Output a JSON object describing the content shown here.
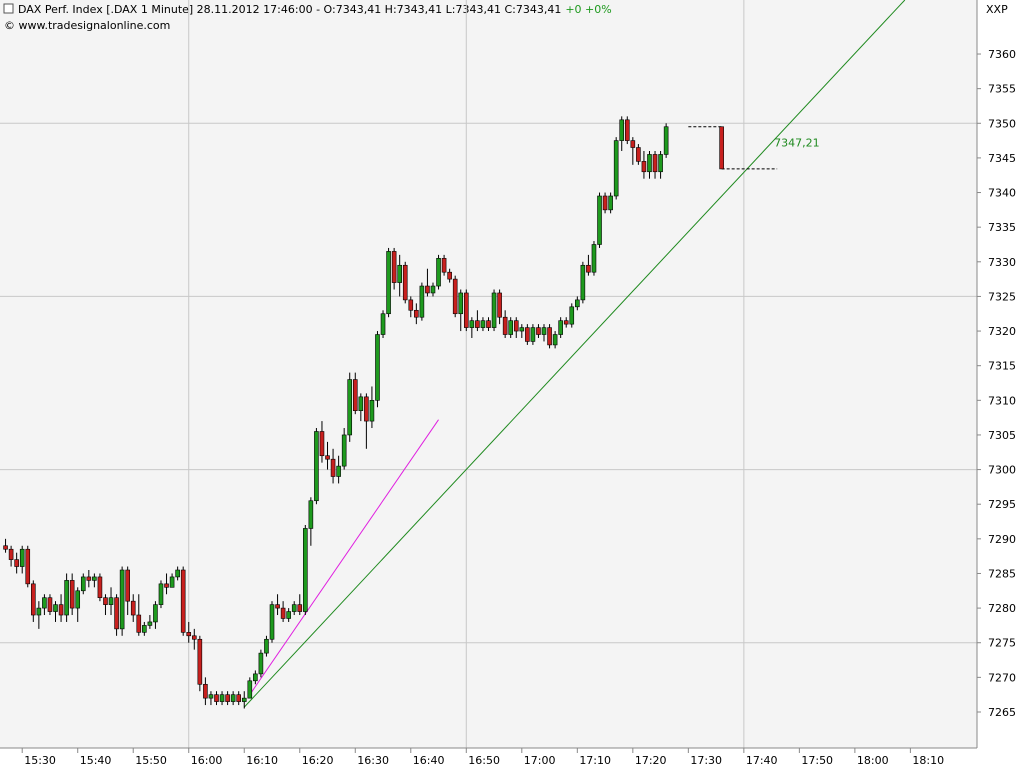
{
  "chart_data": {
    "type": "candlestick",
    "title": "DAX Perf. Index [.DAX  1 Minute] 28.11.2012 17:46:00 - O:7343,41 H:7343,41 L:7343,41 C:7343,41",
    "change": "+0 +0%",
    "subtitle": "© www.tradesignalonline.com",
    "corner_label": "XXP",
    "up_color": "#1e9a1e",
    "down_color": "#c8201e",
    "x": [
      "15:27",
      "15:28",
      "15:29",
      "15:30",
      "15:31",
      "15:32",
      "15:33",
      "15:34",
      "15:35",
      "15:36",
      "15:37",
      "15:38",
      "15:39",
      "15:40",
      "15:41",
      "15:42",
      "15:43",
      "15:44",
      "15:45",
      "15:46",
      "15:47",
      "15:48",
      "15:49",
      "15:50",
      "15:51",
      "15:52",
      "15:53",
      "15:54",
      "15:55",
      "15:56",
      "15:57",
      "15:58",
      "15:59",
      "16:00",
      "16:01",
      "16:02",
      "16:03",
      "16:04",
      "16:05",
      "16:06",
      "16:07",
      "16:08",
      "16:09",
      "16:10",
      "16:11",
      "16:12",
      "16:13",
      "16:14",
      "16:15",
      "16:16",
      "16:17",
      "16:18",
      "16:19",
      "16:20",
      "16:21",
      "16:22",
      "16:23",
      "16:24",
      "16:25",
      "16:26",
      "16:27",
      "16:28",
      "16:29",
      "16:30",
      "16:31",
      "16:32",
      "16:33",
      "16:34",
      "16:35",
      "16:36",
      "16:37",
      "16:38",
      "16:39",
      "16:40",
      "16:41",
      "16:42",
      "16:43",
      "16:44",
      "16:45",
      "16:46",
      "16:47",
      "16:48",
      "16:49",
      "16:50",
      "16:51",
      "16:52",
      "16:53",
      "16:54",
      "16:55",
      "16:56",
      "16:57",
      "16:58",
      "16:59",
      "17:00",
      "17:01",
      "17:02",
      "17:03",
      "17:04",
      "17:05",
      "17:06",
      "17:07",
      "17:08",
      "17:09",
      "17:10",
      "17:11",
      "17:12",
      "17:13",
      "17:14",
      "17:15",
      "17:16",
      "17:17",
      "17:18",
      "17:19",
      "17:20",
      "17:21",
      "17:22",
      "17:23",
      "17:24",
      "17:25",
      "17:26",
      "17:36"
    ],
    "open": [
      7289,
      7288.5,
      7287,
      7286,
      7288.5,
      7283.5,
      7279,
      7280,
      7281.5,
      7279.5,
      7280.5,
      7279,
      7284,
      7280,
      7282.5,
      7284.5,
      7284,
      7284.5,
      7281.5,
      7280.5,
      7281.5,
      7277,
      7285.5,
      7281,
      7279,
      7276.5,
      7277.5,
      7278,
      7280.5,
      7283.5,
      7283,
      7284.5,
      7285.5,
      7276.5,
      7276,
      7275.5,
      7269,
      7267,
      7267.5,
      7266.5,
      7267.5,
      7266.5,
      7267.5,
      7266.5,
      7267,
      7269.5,
      7270.5,
      7273.5,
      7275.5,
      7280.5,
      7280,
      7278.5,
      7279.5,
      7280.5,
      7279.5,
      7291.5,
      7295.5,
      7305.5,
      7302,
      7301.5,
      7299,
      7300.5,
      7305,
      7313,
      7308.5,
      7310.5,
      7307,
      7310,
      7319.5,
      7322.5,
      7331.5,
      7327,
      7329.5,
      7324.5,
      7323,
      7322,
      7326.5,
      7325.5,
      7326.5,
      7330.5,
      7328.5,
      7327.5,
      7322.5,
      7325.5,
      7320.5,
      7321.5,
      7320.5,
      7321.5,
      7320.5,
      7325.5,
      7322,
      7319.5,
      7321.5,
      7320,
      7320.5,
      7318.5,
      7320.5,
      7319.5,
      7320.5,
      7318,
      7319.5,
      7321.5,
      7321,
      7323.5,
      7324.5,
      7329.5,
      7328.5,
      7332.5,
      7339.5,
      7337.5,
      7339.5,
      7347.5,
      7350.5,
      7347.5,
      7346.5,
      7344.5,
      7343,
      7345.5,
      7343,
      7345.5,
      7349.5
    ],
    "high": [
      7290,
      7289,
      7288,
      7289,
      7289,
      7284,
      7281,
      7282,
      7282,
      7281,
      7282,
      7285,
      7285,
      7283,
      7285,
      7285.5,
      7285,
      7285,
      7282,
      7283,
      7282,
      7286,
      7286,
      7282,
      7282,
      7278,
      7279,
      7281,
      7284,
      7285,
      7285,
      7286,
      7286,
      7278,
      7277,
      7276,
      7270,
      7268,
      7268,
      7268,
      7268,
      7268,
      7268,
      7268,
      7270,
      7271,
      7274,
      7276,
      7281,
      7282,
      7281,
      7280,
      7281,
      7282,
      7292,
      7296,
      7306,
      7307,
      7304,
      7303,
      7302,
      7306,
      7314,
      7314,
      7311,
      7311,
      7312,
      7320,
      7323,
      7332,
      7332,
      7331,
      7330,
      7325,
      7324,
      7327,
      7329,
      7327,
      7331,
      7331,
      7329,
      7328,
      7326,
      7326,
      7322,
      7323,
      7322,
      7322,
      7326,
      7326,
      7323,
      7322,
      7322,
      7321,
      7321,
      7321,
      7321,
      7321,
      7321,
      7320,
      7322,
      7322,
      7324,
      7325,
      7330,
      7331,
      7333,
      7340,
      7340,
      7340,
      7348,
      7351,
      7351,
      7348,
      7347,
      7346,
      7346,
      7346,
      7346,
      7350,
      7349.5
    ],
    "low": [
      7288,
      7286,
      7285,
      7285,
      7283,
      7278,
      7277,
      7279,
      7279,
      7278,
      7278,
      7278,
      7279,
      7278,
      7282,
      7283,
      7283,
      7281,
      7279,
      7279,
      7276,
      7276,
      7279,
      7278,
      7276,
      7276,
      7277,
      7277,
      7280,
      7282,
      7283,
      7284,
      7276,
      7275,
      7274,
      7268,
      7266,
      7266,
      7266,
      7266,
      7266,
      7266,
      7266,
      7265.5,
      7267,
      7269,
      7270,
      7273,
      7275,
      7279,
      7278,
      7278,
      7279,
      7279,
      7279,
      7289,
      7295,
      7301,
      7300,
      7298,
      7298,
      7300,
      7304,
      7308,
      7307,
      7303,
      7306,
      7309,
      7319,
      7322,
      7326,
      7325,
      7324,
      7322,
      7321,
      7321.5,
      7325,
      7325,
      7326,
      7328,
      7327,
      7322,
      7320,
      7320,
      7319,
      7320,
      7320,
      7320,
      7320,
      7321,
      7319,
      7319,
      7319,
      7319,
      7318,
      7318,
      7319,
      7318.5,
      7317.5,
      7317.5,
      7319,
      7320.5,
      7320.5,
      7323,
      7324,
      7328,
      7328,
      7332,
      7337,
      7337,
      7339,
      7346,
      7347,
      7344,
      7344,
      7342,
      7342,
      7342,
      7342,
      7345,
      7343.41
    ],
    "close": [
      7288.5,
      7287,
      7286,
      7288.5,
      7283.5,
      7279,
      7280,
      7281.5,
      7279.5,
      7280.5,
      7279,
      7284,
      7280,
      7282.5,
      7284.5,
      7284,
      7284.5,
      7281.5,
      7280.5,
      7281.5,
      7277,
      7285.5,
      7281,
      7279,
      7276.5,
      7277.5,
      7278,
      7280.5,
      7283.5,
      7283,
      7284.5,
      7285.5,
      7276.5,
      7276,
      7275.5,
      7269,
      7267,
      7267.5,
      7266.5,
      7267.5,
      7266.5,
      7267.5,
      7266.5,
      7267,
      7269.5,
      7270.5,
      7273.5,
      7275.5,
      7280.5,
      7280,
      7278.5,
      7279.5,
      7280.5,
      7279.5,
      7291.5,
      7295.5,
      7305.5,
      7302,
      7301.5,
      7299,
      7300.5,
      7305,
      7313,
      7308.5,
      7310.5,
      7307,
      7310,
      7319.5,
      7322.5,
      7331.5,
      7327,
      7329.5,
      7324.5,
      7323,
      7322,
      7326.5,
      7325.5,
      7326.5,
      7330.5,
      7328.5,
      7327.5,
      7322.5,
      7325.5,
      7320.5,
      7321.5,
      7320.5,
      7321.5,
      7320.5,
      7325.5,
      7322,
      7319.5,
      7321.5,
      7320,
      7320.5,
      7318.5,
      7320.5,
      7319.5,
      7320.5,
      7318,
      7319.5,
      7321.5,
      7321,
      7323.5,
      7324.5,
      7329.5,
      7328.5,
      7332.5,
      7339.5,
      7337.5,
      7339.5,
      7347.5,
      7350.5,
      7347.5,
      7346.5,
      7344.5,
      7343,
      7345.5,
      7343,
      7345.5,
      7349.5,
      7343.41
    ],
    "xlim": [
      "15:26",
      "18:22"
    ],
    "xticks": [
      "15:30",
      "15:40",
      "15:50",
      "16:00",
      "16:10",
      "16:20",
      "16:30",
      "16:40",
      "16:50",
      "17:00",
      "17:10",
      "17:20",
      "17:30",
      "17:40",
      "17:50",
      "18:00",
      "18:10"
    ],
    "xgrid": [
      "16:00",
      "16:50",
      "17:40"
    ],
    "ylim": [
      7259.8,
      7367.8
    ],
    "yticks": [
      7265,
      7270,
      7275,
      7280,
      7285,
      7290,
      7295,
      7300,
      7305,
      7310,
      7315,
      7320,
      7325,
      7330,
      7335,
      7340,
      7345,
      7350,
      7355,
      7360
    ],
    "ygrid": [
      7275,
      7300,
      7325,
      7350
    ],
    "trendlines": [
      {
        "color": "#1f8a1f",
        "x": [
          "16:10",
          "18:09"
        ],
        "values": [
          7265.7,
          7367.8
        ]
      },
      {
        "color": "#e020e0",
        "x": [
          "16:11",
          "16:45"
        ],
        "values": [
          7267.5,
          7307.2
        ]
      }
    ],
    "levels": [
      {
        "x": [
          "17:30",
          "17:36"
        ],
        "value": 7349.5
      },
      {
        "x": [
          "17:36",
          "17:46"
        ],
        "value": 7343.41
      }
    ],
    "annotation": {
      "label": "7347,21",
      "x": "17:46",
      "value": 7347.21,
      "color": "#1f8a1f"
    }
  }
}
